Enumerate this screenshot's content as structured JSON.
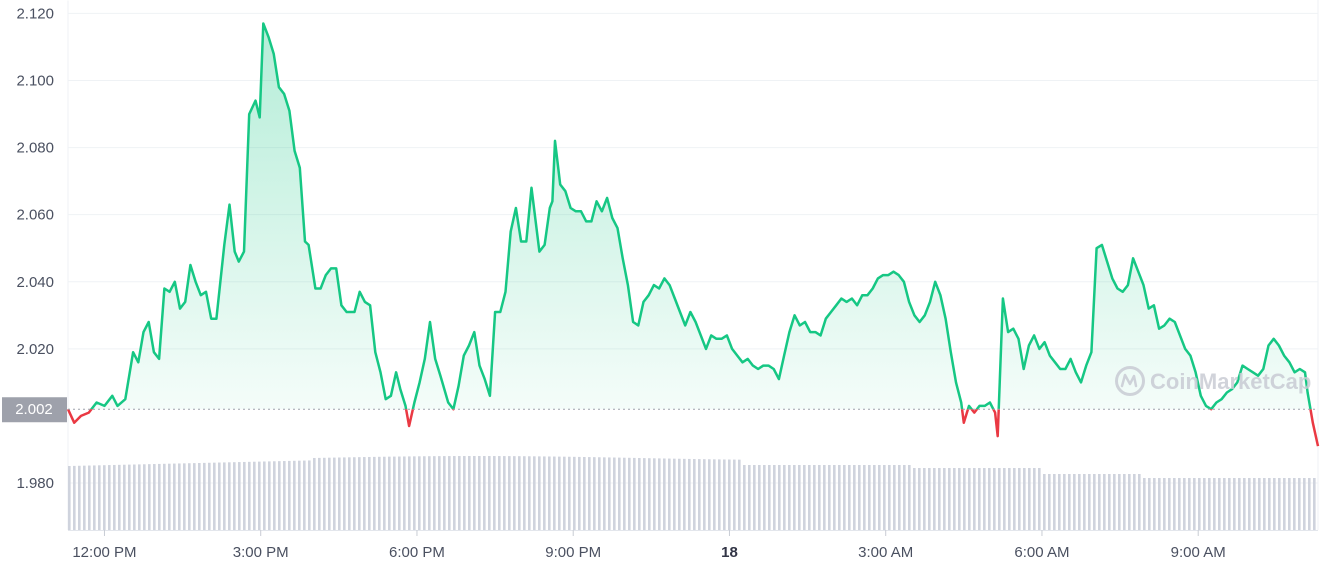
{
  "watermark": {
    "text": "CoinMarketCap",
    "logo_icon": "coinmarketcap-logo-icon"
  },
  "current_price_label": "2.002",
  "colors": {
    "up": "#16c784",
    "down": "#ea3943",
    "fill_top": "#16c784",
    "volume": "#cfd3dd",
    "grid": "#eff2f5",
    "badge": "#9ea1ab",
    "text": "#4a5060"
  },
  "chart_data": {
    "type": "area",
    "reference_value": 2.002,
    "ylim": [
      1.966,
      2.124
    ],
    "y_ticks": [
      "1.980",
      "2.020",
      "2.040",
      "2.060",
      "2.080",
      "2.100",
      "2.120"
    ],
    "x_ticks": [
      {
        "label": "12:00 PM",
        "hour": 12,
        "bold": false
      },
      {
        "label": "3:00 PM",
        "hour": 15,
        "bold": false
      },
      {
        "label": "6:00 PM",
        "hour": 18,
        "bold": false
      },
      {
        "label": "9:00 PM",
        "hour": 21,
        "bold": false
      },
      {
        "label": "18",
        "hour": 24,
        "bold": true
      },
      {
        "label": "3:00 AM",
        "hour": 27,
        "bold": false
      },
      {
        "label": "6:00 AM",
        "hour": 30,
        "bold": false
      },
      {
        "label": "9:00 AM",
        "hour": 33,
        "bold": false
      }
    ],
    "x_range_hours": [
      11.3,
      35.3
    ],
    "price_series": [
      [
        11.3,
        2.002
      ],
      [
        11.42,
        1.998
      ],
      [
        11.55,
        2.0
      ],
      [
        11.7,
        2.001
      ],
      [
        11.85,
        2.004
      ],
      [
        12.0,
        2.003
      ],
      [
        12.15,
        2.006
      ],
      [
        12.25,
        2.003
      ],
      [
        12.4,
        2.005
      ],
      [
        12.55,
        2.019
      ],
      [
        12.65,
        2.016
      ],
      [
        12.75,
        2.025
      ],
      [
        12.85,
        2.028
      ],
      [
        12.95,
        2.019
      ],
      [
        13.05,
        2.017
      ],
      [
        13.15,
        2.038
      ],
      [
        13.25,
        2.037
      ],
      [
        13.35,
        2.04
      ],
      [
        13.45,
        2.032
      ],
      [
        13.55,
        2.034
      ],
      [
        13.65,
        2.045
      ],
      [
        13.75,
        2.04
      ],
      [
        13.85,
        2.036
      ],
      [
        13.95,
        2.037
      ],
      [
        14.05,
        2.029
      ],
      [
        14.15,
        2.029
      ],
      [
        14.3,
        2.051
      ],
      [
        14.4,
        2.063
      ],
      [
        14.5,
        2.049
      ],
      [
        14.58,
        2.046
      ],
      [
        14.68,
        2.049
      ],
      [
        14.78,
        2.09
      ],
      [
        14.9,
        2.094
      ],
      [
        14.98,
        2.089
      ],
      [
        15.05,
        2.117
      ],
      [
        15.15,
        2.113
      ],
      [
        15.25,
        2.108
      ],
      [
        15.35,
        2.098
      ],
      [
        15.45,
        2.096
      ],
      [
        15.55,
        2.091
      ],
      [
        15.65,
        2.079
      ],
      [
        15.75,
        2.074
      ],
      [
        15.85,
        2.052
      ],
      [
        15.92,
        2.051
      ],
      [
        16.05,
        2.038
      ],
      [
        16.15,
        2.038
      ],
      [
        16.25,
        2.042
      ],
      [
        16.35,
        2.044
      ],
      [
        16.45,
        2.044
      ],
      [
        16.55,
        2.033
      ],
      [
        16.65,
        2.031
      ],
      [
        16.8,
        2.031
      ],
      [
        16.9,
        2.037
      ],
      [
        17.0,
        2.034
      ],
      [
        17.1,
        2.033
      ],
      [
        17.2,
        2.019
      ],
      [
        17.3,
        2.013
      ],
      [
        17.4,
        2.005
      ],
      [
        17.5,
        2.006
      ],
      [
        17.6,
        2.013
      ],
      [
        17.68,
        2.008
      ],
      [
        17.78,
        2.003
      ],
      [
        17.85,
        1.997
      ],
      [
        17.95,
        2.004
      ],
      [
        18.05,
        2.01
      ],
      [
        18.15,
        2.017
      ],
      [
        18.25,
        2.028
      ],
      [
        18.35,
        2.017
      ],
      [
        18.45,
        2.012
      ],
      [
        18.6,
        2.004
      ],
      [
        18.7,
        2.002
      ],
      [
        18.8,
        2.009
      ],
      [
        18.9,
        2.018
      ],
      [
        19.0,
        2.021
      ],
      [
        19.1,
        2.025
      ],
      [
        19.2,
        2.015
      ],
      [
        19.3,
        2.011
      ],
      [
        19.4,
        2.006
      ],
      [
        19.5,
        2.031
      ],
      [
        19.6,
        2.031
      ],
      [
        19.7,
        2.037
      ],
      [
        19.8,
        2.055
      ],
      [
        19.9,
        2.062
      ],
      [
        20.0,
        2.052
      ],
      [
        20.1,
        2.052
      ],
      [
        20.2,
        2.068
      ],
      [
        20.35,
        2.049
      ],
      [
        20.45,
        2.051
      ],
      [
        20.55,
        2.062
      ],
      [
        20.6,
        2.064
      ],
      [
        20.65,
        2.082
      ],
      [
        20.75,
        2.069
      ],
      [
        20.85,
        2.067
      ],
      [
        20.95,
        2.062
      ],
      [
        21.05,
        2.061
      ],
      [
        21.15,
        2.061
      ],
      [
        21.25,
        2.058
      ],
      [
        21.35,
        2.058
      ],
      [
        21.45,
        2.064
      ],
      [
        21.55,
        2.061
      ],
      [
        21.65,
        2.065
      ],
      [
        21.75,
        2.059
      ],
      [
        21.85,
        2.056
      ],
      [
        21.95,
        2.047
      ],
      [
        22.05,
        2.039
      ],
      [
        22.15,
        2.028
      ],
      [
        22.25,
        2.027
      ],
      [
        22.35,
        2.034
      ],
      [
        22.45,
        2.036
      ],
      [
        22.55,
        2.039
      ],
      [
        22.65,
        2.038
      ],
      [
        22.75,
        2.041
      ],
      [
        22.85,
        2.039
      ],
      [
        22.95,
        2.035
      ],
      [
        23.05,
        2.031
      ],
      [
        23.15,
        2.027
      ],
      [
        23.25,
        2.031
      ],
      [
        23.35,
        2.028
      ],
      [
        23.45,
        2.024
      ],
      [
        23.55,
        2.02
      ],
      [
        23.65,
        2.024
      ],
      [
        23.75,
        2.023
      ],
      [
        23.85,
        2.023
      ],
      [
        23.95,
        2.024
      ],
      [
        24.05,
        2.02
      ],
      [
        24.15,
        2.018
      ],
      [
        24.25,
        2.016
      ],
      [
        24.35,
        2.017
      ],
      [
        24.45,
        2.015
      ],
      [
        24.55,
        2.014
      ],
      [
        24.65,
        2.015
      ],
      [
        24.75,
        2.015
      ],
      [
        24.85,
        2.014
      ],
      [
        24.95,
        2.011
      ],
      [
        25.05,
        2.018
      ],
      [
        25.15,
        2.025
      ],
      [
        25.25,
        2.03
      ],
      [
        25.35,
        2.027
      ],
      [
        25.45,
        2.028
      ],
      [
        25.55,
        2.025
      ],
      [
        25.65,
        2.025
      ],
      [
        25.75,
        2.024
      ],
      [
        25.85,
        2.029
      ],
      [
        25.95,
        2.031
      ],
      [
        26.05,
        2.033
      ],
      [
        26.15,
        2.035
      ],
      [
        26.25,
        2.034
      ],
      [
        26.35,
        2.035
      ],
      [
        26.45,
        2.033
      ],
      [
        26.55,
        2.036
      ],
      [
        26.65,
        2.036
      ],
      [
        26.75,
        2.038
      ],
      [
        26.85,
        2.041
      ],
      [
        26.95,
        2.042
      ],
      [
        27.05,
        2.042
      ],
      [
        27.15,
        2.043
      ],
      [
        27.25,
        2.042
      ],
      [
        27.35,
        2.04
      ],
      [
        27.45,
        2.034
      ],
      [
        27.55,
        2.03
      ],
      [
        27.65,
        2.028
      ],
      [
        27.75,
        2.03
      ],
      [
        27.85,
        2.034
      ],
      [
        27.95,
        2.04
      ],
      [
        28.05,
        2.036
      ],
      [
        28.15,
        2.029
      ],
      [
        28.25,
        2.019
      ],
      [
        28.35,
        2.01
      ],
      [
        28.45,
        2.004
      ],
      [
        28.5,
        1.998
      ],
      [
        28.6,
        2.003
      ],
      [
        28.7,
        2.001
      ],
      [
        28.8,
        2.003
      ],
      [
        28.9,
        2.003
      ],
      [
        29.0,
        2.004
      ],
      [
        29.1,
        2.001
      ],
      [
        29.15,
        1.994
      ],
      [
        29.25,
        2.035
      ],
      [
        29.35,
        2.025
      ],
      [
        29.45,
        2.026
      ],
      [
        29.55,
        2.023
      ],
      [
        29.65,
        2.014
      ],
      [
        29.75,
        2.021
      ],
      [
        29.85,
        2.024
      ],
      [
        29.95,
        2.02
      ],
      [
        30.05,
        2.022
      ],
      [
        30.15,
        2.018
      ],
      [
        30.25,
        2.016
      ],
      [
        30.35,
        2.014
      ],
      [
        30.45,
        2.014
      ],
      [
        30.55,
        2.017
      ],
      [
        30.65,
        2.013
      ],
      [
        30.75,
        2.01
      ],
      [
        30.85,
        2.015
      ],
      [
        30.95,
        2.019
      ],
      [
        31.05,
        2.05
      ],
      [
        31.15,
        2.051
      ],
      [
        31.25,
        2.046
      ],
      [
        31.35,
        2.041
      ],
      [
        31.45,
        2.038
      ],
      [
        31.55,
        2.037
      ],
      [
        31.65,
        2.039
      ],
      [
        31.75,
        2.047
      ],
      [
        31.85,
        2.043
      ],
      [
        31.95,
        2.039
      ],
      [
        32.05,
        2.032
      ],
      [
        32.15,
        2.033
      ],
      [
        32.25,
        2.026
      ],
      [
        32.35,
        2.027
      ],
      [
        32.45,
        2.029
      ],
      [
        32.55,
        2.028
      ],
      [
        32.65,
        2.024
      ],
      [
        32.75,
        2.02
      ],
      [
        32.85,
        2.018
      ],
      [
        32.95,
        2.013
      ],
      [
        33.05,
        2.006
      ],
      [
        33.15,
        2.003
      ],
      [
        33.25,
        2.002
      ],
      [
        33.35,
        2.004
      ],
      [
        33.45,
        2.005
      ],
      [
        33.55,
        2.007
      ],
      [
        33.65,
        2.008
      ],
      [
        33.75,
        2.01
      ],
      [
        33.85,
        2.015
      ],
      [
        33.95,
        2.014
      ],
      [
        34.05,
        2.013
      ],
      [
        34.15,
        2.012
      ],
      [
        34.25,
        2.014
      ],
      [
        34.35,
        2.021
      ],
      [
        34.45,
        2.023
      ],
      [
        34.55,
        2.021
      ],
      [
        34.65,
        2.018
      ],
      [
        34.75,
        2.016
      ],
      [
        34.85,
        2.013
      ],
      [
        34.95,
        2.014
      ],
      [
        35.05,
        2.013
      ],
      [
        35.1,
        2.007
      ],
      [
        35.2,
        1.998
      ],
      [
        35.3,
        1.991
      ]
    ]
  }
}
